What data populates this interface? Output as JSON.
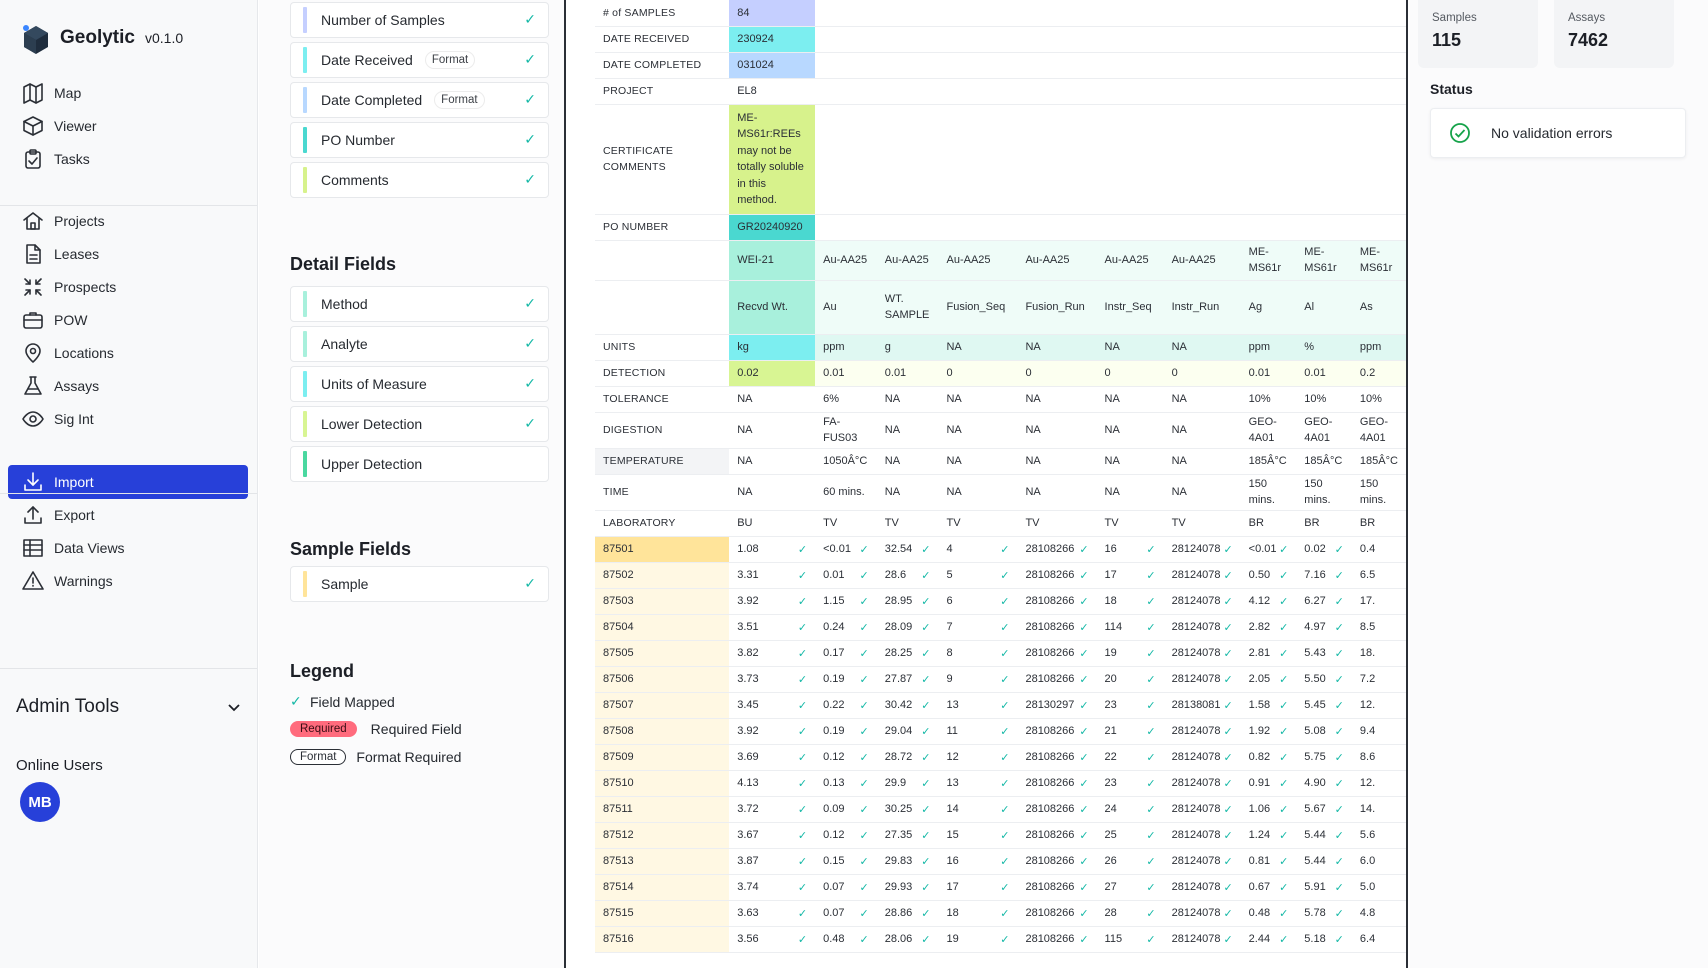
{
  "app": {
    "name": "Geolytic",
    "version": "v0.1.0"
  },
  "nav": {
    "group1": [
      {
        "label": "Map",
        "icon": "map-icon"
      },
      {
        "label": "Viewer",
        "icon": "cube-icon"
      },
      {
        "label": "Tasks",
        "icon": "clipboard-icon"
      }
    ],
    "group2": [
      {
        "label": "Projects",
        "icon": "home-icon"
      },
      {
        "label": "Leases",
        "icon": "document-icon"
      },
      {
        "label": "Prospects",
        "icon": "compress-arrows-icon"
      },
      {
        "label": "POW",
        "icon": "briefcase-icon"
      },
      {
        "label": "Locations",
        "icon": "location-pin-icon"
      },
      {
        "label": "Assays",
        "icon": "flask-icon"
      },
      {
        "label": "Sig Int",
        "icon": "eye-icon"
      }
    ],
    "group3": [
      {
        "label": "Import",
        "icon": "download-icon",
        "active": true
      },
      {
        "label": "Export",
        "icon": "upload-icon"
      },
      {
        "label": "Data Views",
        "icon": "table-icon"
      },
      {
        "label": "Warnings",
        "icon": "warning-icon"
      }
    ],
    "admin_tools": "Admin Tools",
    "online_users_title": "Online Users",
    "avatar_initials": "MB"
  },
  "fields": {
    "header_fields": [
      {
        "label": "Number of Samples",
        "color": "#c5cfff",
        "format": "",
        "mapped": true
      },
      {
        "label": "Date Received",
        "color": "#7ceef0",
        "format": "Format",
        "mapped": true
      },
      {
        "label": "Date Completed",
        "color": "#b8d8ff",
        "format": "Format",
        "mapped": true
      },
      {
        "label": "PO Number",
        "color": "#4ad8d0",
        "format": "",
        "mapped": true
      },
      {
        "label": "Comments",
        "color": "#d7f28c",
        "format": "",
        "mapped": true
      }
    ],
    "detail_title": "Detail Fields",
    "detail_fields": [
      {
        "label": "Method",
        "color": "#a8f0dc",
        "mapped": true
      },
      {
        "label": "Analyte",
        "color": "#a8f0dc",
        "mapped": true
      },
      {
        "label": "Units of Measure",
        "color": "#7ceef0",
        "mapped": true
      },
      {
        "label": "Lower Detection",
        "color": "#d8f593",
        "mapped": true
      },
      {
        "label": "Upper Detection",
        "color": "#4ad8a0",
        "mapped": false
      }
    ],
    "sample_title": "Sample Fields",
    "sample_fields": [
      {
        "label": "Sample",
        "color": "#ffe49a",
        "mapped": true
      }
    ],
    "legend_title": "Legend",
    "legend": {
      "mapped": "Field Mapped",
      "required_pill": "Required",
      "required": "Required Field",
      "format_pill": "Format",
      "format": "Format Required"
    }
  },
  "table": {
    "header_rows": [
      {
        "label": "# of SAMPLES",
        "value": "84"
      },
      {
        "label": "DATE RECEIVED",
        "value": "230924"
      },
      {
        "label": "DATE COMPLETED",
        "value": "031024"
      },
      {
        "label": "PROJECT",
        "value": "EL8"
      },
      {
        "label": "CERTIFICATE COMMENTS",
        "value": "ME-MS61r:REEs may not be totally soluble in this method."
      },
      {
        "label": "PO NUMBER",
        "value": "GR20240920"
      }
    ],
    "methods": [
      "WEI-21",
      "Au-AA25",
      "Au-AA25",
      "Au-AA25",
      "Au-AA25",
      "Au-AA25",
      "Au-AA25",
      "ME-MS61r",
      "ME-MS61r",
      "ME-MS61r"
    ],
    "analytes": [
      "Recvd Wt.",
      "Au",
      "WT. SAMPLE",
      "Fusion_Seq",
      "Fusion_Run",
      "Instr_Seq",
      "Instr_Run",
      "Ag",
      "Al",
      "As"
    ],
    "param_rows": [
      {
        "label": "UNITS",
        "values": [
          "kg",
          "ppm",
          "g",
          "NA",
          "NA",
          "NA",
          "NA",
          "ppm",
          "%",
          "ppm"
        ]
      },
      {
        "label": "DETECTION",
        "values": [
          "0.02",
          "0.01",
          "0.01",
          "0",
          "0",
          "0",
          "0",
          "0.01",
          "0.01",
          "0.2"
        ]
      },
      {
        "label": "TOLERANCE",
        "values": [
          "NA",
          "6%",
          "NA",
          "NA",
          "NA",
          "NA",
          "NA",
          "10%",
          "10%",
          "10%"
        ]
      },
      {
        "label": "DIGESTION",
        "values": [
          "NA",
          "FA-FUS03",
          "NA",
          "NA",
          "NA",
          "NA",
          "NA",
          "GEO-4A01",
          "GEO-4A01",
          "GEO-4A01"
        ]
      },
      {
        "label": "TEMPERATURE",
        "values": [
          "NA",
          "1050Â°C",
          "NA",
          "NA",
          "NA",
          "NA",
          "NA",
          "185Â°C",
          "185Â°C",
          "185Â°C"
        ]
      },
      {
        "label": "TIME",
        "values": [
          "NA",
          "60 mins.",
          "NA",
          "NA",
          "NA",
          "NA",
          "NA",
          "150 mins.",
          "150 mins.",
          "150 mins."
        ]
      },
      {
        "label": "LABORATORY",
        "values": [
          "BU",
          "TV",
          "TV",
          "TV",
          "TV",
          "TV",
          "TV",
          "BR",
          "BR",
          "BR"
        ]
      }
    ],
    "samples": [
      {
        "id": "87501",
        "v": [
          "1.08",
          "<0.01",
          "32.54",
          "4",
          "28108266",
          "16",
          "28124078",
          "<0.01",
          "0.02",
          "0.4"
        ]
      },
      {
        "id": "87502",
        "v": [
          "3.31",
          "0.01",
          "28.6",
          "5",
          "28108266",
          "17",
          "28124078",
          "0.50",
          "7.16",
          "6.5"
        ]
      },
      {
        "id": "87503",
        "v": [
          "3.92",
          "1.15",
          "28.95",
          "6",
          "28108266",
          "18",
          "28124078",
          "4.12",
          "6.27",
          "17."
        ]
      },
      {
        "id": "87504",
        "v": [
          "3.51",
          "0.24",
          "28.09",
          "7",
          "28108266",
          "114",
          "28124078",
          "2.82",
          "4.97",
          "8.5"
        ]
      },
      {
        "id": "87505",
        "v": [
          "3.82",
          "0.17",
          "28.25",
          "8",
          "28108266",
          "19",
          "28124078",
          "2.81",
          "5.43",
          "18."
        ]
      },
      {
        "id": "87506",
        "v": [
          "3.73",
          "0.19",
          "27.87",
          "9",
          "28108266",
          "20",
          "28124078",
          "2.05",
          "5.50",
          "7.2"
        ]
      },
      {
        "id": "87507",
        "v": [
          "3.45",
          "0.22",
          "30.42",
          "13",
          "28130297",
          "23",
          "28138081",
          "1.58",
          "5.45",
          "12."
        ]
      },
      {
        "id": "87508",
        "v": [
          "3.92",
          "0.19",
          "29.04",
          "11",
          "28108266",
          "21",
          "28124078",
          "1.92",
          "5.08",
          "9.4"
        ]
      },
      {
        "id": "87509",
        "v": [
          "3.69",
          "0.12",
          "28.72",
          "12",
          "28108266",
          "22",
          "28124078",
          "0.82",
          "5.75",
          "8.6"
        ]
      },
      {
        "id": "87510",
        "v": [
          "4.13",
          "0.13",
          "29.9",
          "13",
          "28108266",
          "23",
          "28124078",
          "0.91",
          "4.90",
          "12."
        ]
      },
      {
        "id": "87511",
        "v": [
          "3.72",
          "0.09",
          "30.25",
          "14",
          "28108266",
          "24",
          "28124078",
          "1.06",
          "5.67",
          "14."
        ]
      },
      {
        "id": "87512",
        "v": [
          "3.67",
          "0.12",
          "27.35",
          "15",
          "28108266",
          "25",
          "28124078",
          "1.24",
          "5.44",
          "5.6"
        ]
      },
      {
        "id": "87513",
        "v": [
          "3.87",
          "0.15",
          "29.83",
          "16",
          "28108266",
          "26",
          "28124078",
          "0.81",
          "5.44",
          "6.0"
        ]
      },
      {
        "id": "87514",
        "v": [
          "3.74",
          "0.07",
          "29.93",
          "17",
          "28108266",
          "27",
          "28124078",
          "0.67",
          "5.91",
          "5.0"
        ]
      },
      {
        "id": "87515",
        "v": [
          "3.63",
          "0.07",
          "28.86",
          "18",
          "28108266",
          "28",
          "28124078",
          "0.48",
          "5.78",
          "4.8"
        ]
      },
      {
        "id": "87516",
        "v": [
          "3.56",
          "0.48",
          "28.06",
          "19",
          "28108266",
          "115",
          "28124078",
          "2.44",
          "5.18",
          "6.4"
        ]
      }
    ]
  },
  "right": {
    "samples_label": "Samples",
    "samples_value": "115",
    "assays_label": "Assays",
    "assays_value": "7462",
    "status_title": "Status",
    "status_message": "No validation errors"
  }
}
